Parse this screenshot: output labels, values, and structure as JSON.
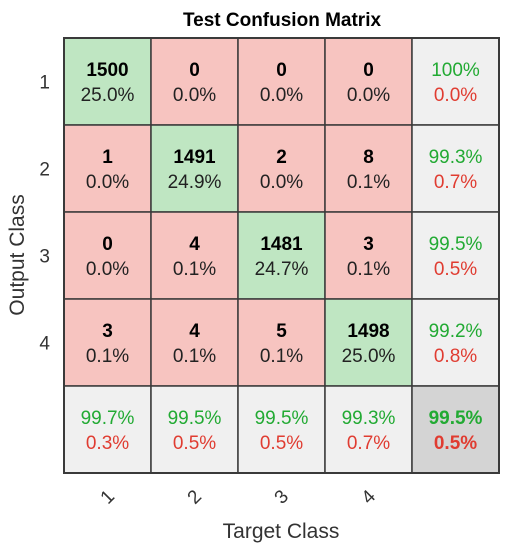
{
  "chart_data": {
    "type": "heatmap",
    "title": "Test Confusion Matrix",
    "xlabel": "Target Class",
    "ylabel": "Output Class",
    "row_labels": [
      "1",
      "2",
      "3",
      "4"
    ],
    "col_labels": [
      "1",
      "2",
      "3",
      "4"
    ],
    "counts": [
      [
        1500,
        0,
        0,
        0
      ],
      [
        1,
        1491,
        2,
        8
      ],
      [
        0,
        4,
        1481,
        3
      ],
      [
        3,
        4,
        5,
        1498
      ]
    ],
    "percents": [
      [
        "25.0%",
        "0.0%",
        "0.0%",
        "0.0%"
      ],
      [
        "0.0%",
        "24.9%",
        "0.0%",
        "0.1%"
      ],
      [
        "0.0%",
        "0.1%",
        "24.7%",
        "0.1%"
      ],
      [
        "0.1%",
        "0.1%",
        "0.1%",
        "25.0%"
      ]
    ],
    "row_summary": [
      {
        "correct": "100%",
        "error": "0.0%"
      },
      {
        "correct": "99.3%",
        "error": "0.7%"
      },
      {
        "correct": "99.5%",
        "error": "0.5%"
      },
      {
        "correct": "99.2%",
        "error": "0.8%"
      }
    ],
    "col_summary": [
      {
        "correct": "99.7%",
        "error": "0.3%"
      },
      {
        "correct": "99.5%",
        "error": "0.5%"
      },
      {
        "correct": "99.5%",
        "error": "0.5%"
      },
      {
        "correct": "99.3%",
        "error": "0.7%"
      }
    ],
    "overall": {
      "correct": "99.5%",
      "error": "0.5%"
    },
    "colors": {
      "diagonal": "#bfe6c2",
      "off_diagonal": "#f7c4c0",
      "summary": "#f0f0f0",
      "overall": "#d4d4d4",
      "correct_text": "#22aa33",
      "error_text": "#e03c31",
      "grid": "#3a3a3a"
    }
  }
}
